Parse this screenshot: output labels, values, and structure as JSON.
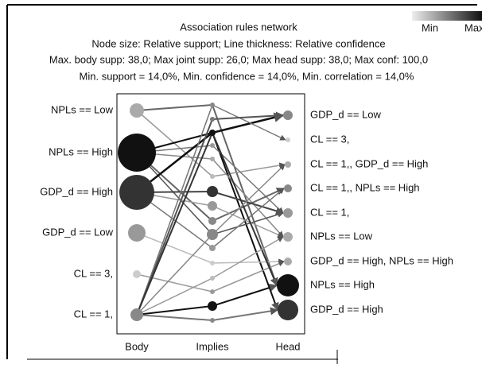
{
  "header": {
    "title": "Association rules network",
    "lines": [
      "Node size: Relative support; Line thickness: Relative confidence",
      "Max. body supp: 38,0; Max joint supp: 26,0; Max head supp: 38,0; Max conf: 100,0",
      "Min. support = 14,0%, Min. confidence = 14,0%, Min. correlation = 14,0%"
    ]
  },
  "legend": {
    "min": "Min",
    "max": "Max"
  },
  "columns": [
    "Body",
    "Implies",
    "Head"
  ],
  "body_nodes": [
    "NPLs == Low",
    "NPLs == High",
    "GDP_d == High",
    "GDP_d == Low",
    "CL == 3,",
    "CL == 1,"
  ],
  "head_nodes": [
    "GDP_d == Low",
    "CL == 3,",
    "CL == 1,, GDP_d == High",
    "CL == 1,, NPLs == High",
    "CL == 1,",
    "NPLs == Low",
    "GDP_d == High, NPLs == High",
    "NPLs == High",
    "GDP_d == High"
  ]
}
